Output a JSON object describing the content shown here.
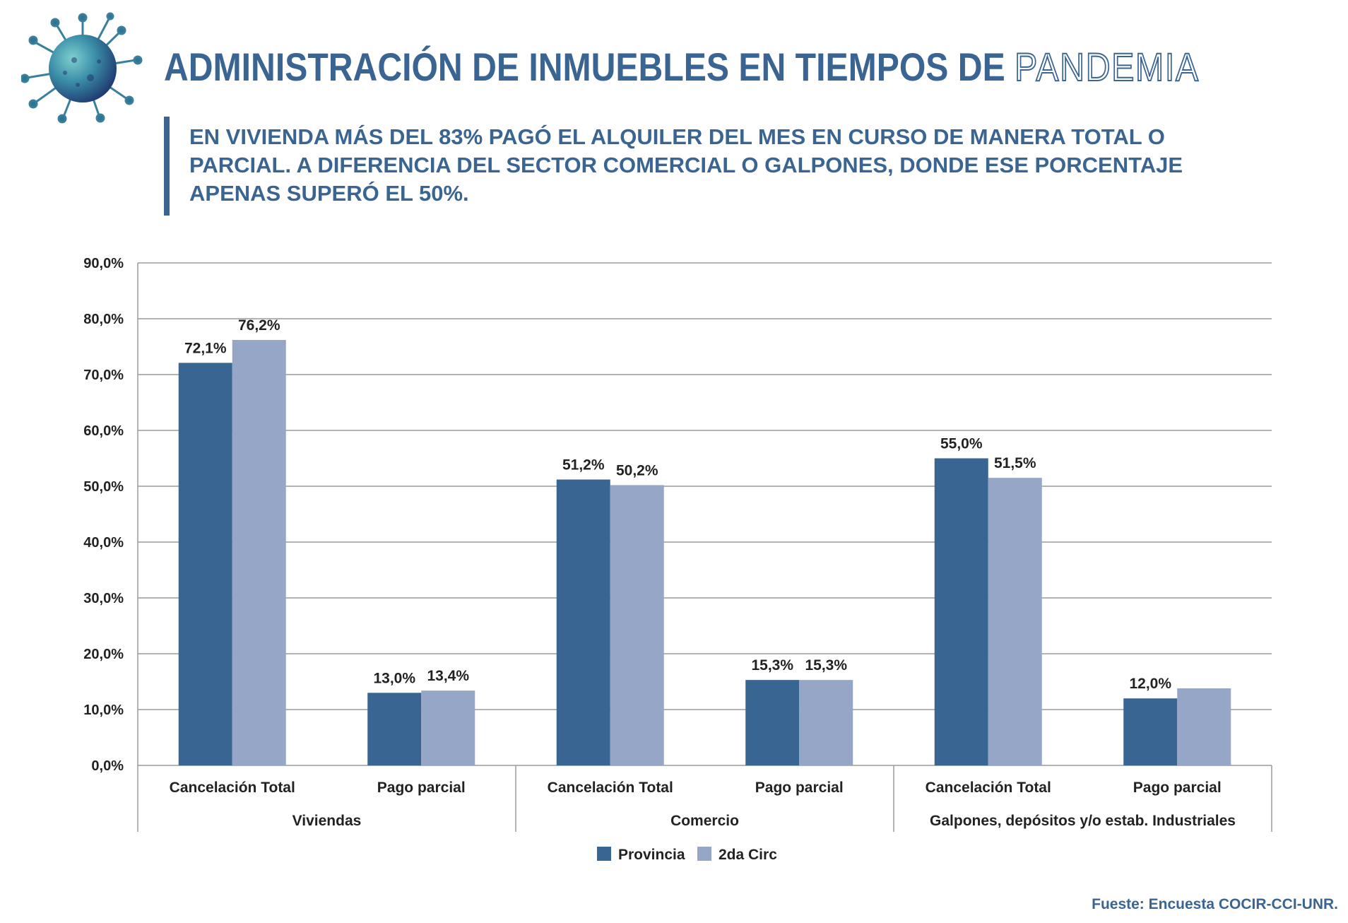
{
  "header": {
    "title_main": "ADMINISTRACIÓN DE INMUEBLES EN TIEMPOS DE",
    "title_outline": "PANDEMIA",
    "subtitle": "EN VIVIENDA MÁS DEL 83% PAGÓ EL ALQUILER DEL MES EN CURSO DE MANERA TOTAL O PARCIAL. A DIFERENCIA DEL SECTOR COMERCIAL O GALPONES, DONDE ESE PORCENTAJE APENAS SUPERÓ EL 50%.",
    "logo_icon": "virus-icon"
  },
  "colors": {
    "brand": "#3a6592",
    "provincia": "#386592",
    "segunda_circ": "#96a6c6",
    "grid": "#9a9a9a",
    "text": "#222222"
  },
  "chart_data": {
    "type": "bar",
    "groups": [
      {
        "name": "Viviendas",
        "categories": [
          "Cancelación Total",
          "Pago parcial"
        ]
      },
      {
        "name": "Comercio",
        "categories": [
          "Cancelación Total",
          "Pago parcial"
        ]
      },
      {
        "name": "Galpones, depósitos y/o estab. Industriales",
        "categories": [
          "Cancelación Total",
          "Pago parcial"
        ]
      }
    ],
    "categories": [
      "Cancelación Total",
      "Pago parcial",
      "Cancelación Total",
      "Pago parcial",
      "Cancelación Total",
      "Pago parcial"
    ],
    "series": [
      {
        "name": "Provincia",
        "values": [
          72.1,
          13.0,
          51.2,
          15.3,
          55.0,
          12.0
        ],
        "labels": [
          "72,1%",
          "13,0%",
          "51,2%",
          "15,3%",
          "55,0%",
          "12,0%"
        ]
      },
      {
        "name": "2da Circ",
        "values": [
          76.2,
          13.4,
          50.2,
          15.3,
          51.5,
          13.8
        ],
        "labels": [
          "76,2%",
          "13,4%",
          "50,2%",
          "15,3%",
          "51,5%",
          ""
        ]
      }
    ],
    "yticks": [
      "0,0%",
      "10,0%",
      "20,0%",
      "30,0%",
      "40,0%",
      "50,0%",
      "60,0%",
      "70,0%",
      "80,0%",
      "90,0%"
    ],
    "ylim": [
      0,
      90
    ],
    "grid": true,
    "legend": "bottom-center"
  },
  "footer": {
    "source": "Fueste: Encuesta COCIR-CCI-UNR."
  }
}
